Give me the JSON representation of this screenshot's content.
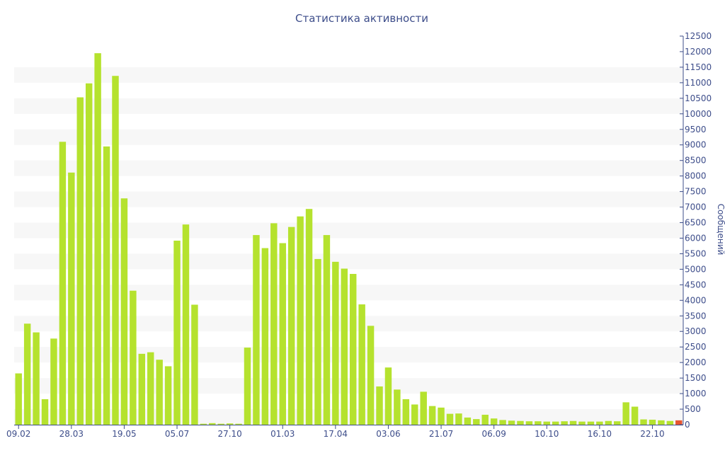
{
  "chart_data": {
    "type": "bar",
    "title": "Статистика активности",
    "xlabel": "",
    "ylabel": "Сообщений",
    "ylim": [
      0,
      12500
    ],
    "y_ticks": [
      0,
      500,
      1000,
      1500,
      2000,
      2500,
      3000,
      3500,
      4000,
      4500,
      5000,
      5500,
      6000,
      6500,
      7000,
      7500,
      8000,
      8500,
      9000,
      9500,
      10000,
      10500,
      11000,
      11500,
      12000,
      12500
    ],
    "y_axis_position": "right",
    "grid": "alternating horizontal bands",
    "x_tick_labels": [
      {
        "label": "09.02",
        "index": 0
      },
      {
        "label": "28.03",
        "index": 6
      },
      {
        "label": "19.05",
        "index": 12
      },
      {
        "label": "05.07",
        "index": 18
      },
      {
        "label": "27.10",
        "index": 24
      },
      {
        "label": "01.03",
        "index": 30
      },
      {
        "label": "17.04",
        "index": 36
      },
      {
        "label": "03.06",
        "index": 42
      },
      {
        "label": "21.07",
        "index": 48
      },
      {
        "label": "06.09",
        "index": 54
      },
      {
        "label": "10.10",
        "index": 60
      },
      {
        "label": "16.10",
        "index": 66
      },
      {
        "label": "22.10",
        "index": 72
      }
    ],
    "colors": {
      "bar": "#b5e22e",
      "highlight": "#e8552f",
      "text": "#3d4d8a",
      "band": "#f7f7f7"
    },
    "series": [
      {
        "values": [
          1650,
          3250,
          2970,
          820,
          2770,
          9100,
          8110,
          10530,
          10980,
          11950,
          8950,
          11220,
          7280,
          4310,
          2280,
          2330,
          2090,
          1880,
          5920,
          6440,
          3860,
          30,
          50,
          30,
          40,
          30,
          2480,
          6100,
          5680,
          6480,
          5840,
          6360,
          6700,
          6940,
          5330,
          6100,
          5240,
          5020,
          4850,
          3870,
          3180,
          1230,
          1840,
          1130,
          820,
          650,
          1060,
          600,
          550,
          350,
          360,
          230,
          180,
          320,
          200,
          150,
          130,
          120,
          110,
          110,
          100,
          100,
          110,
          120,
          100,
          100,
          100,
          120,
          110,
          720,
          580,
          170,
          160,
          140,
          120,
          140
        ]
      }
    ],
    "highlight_index": 75
  }
}
